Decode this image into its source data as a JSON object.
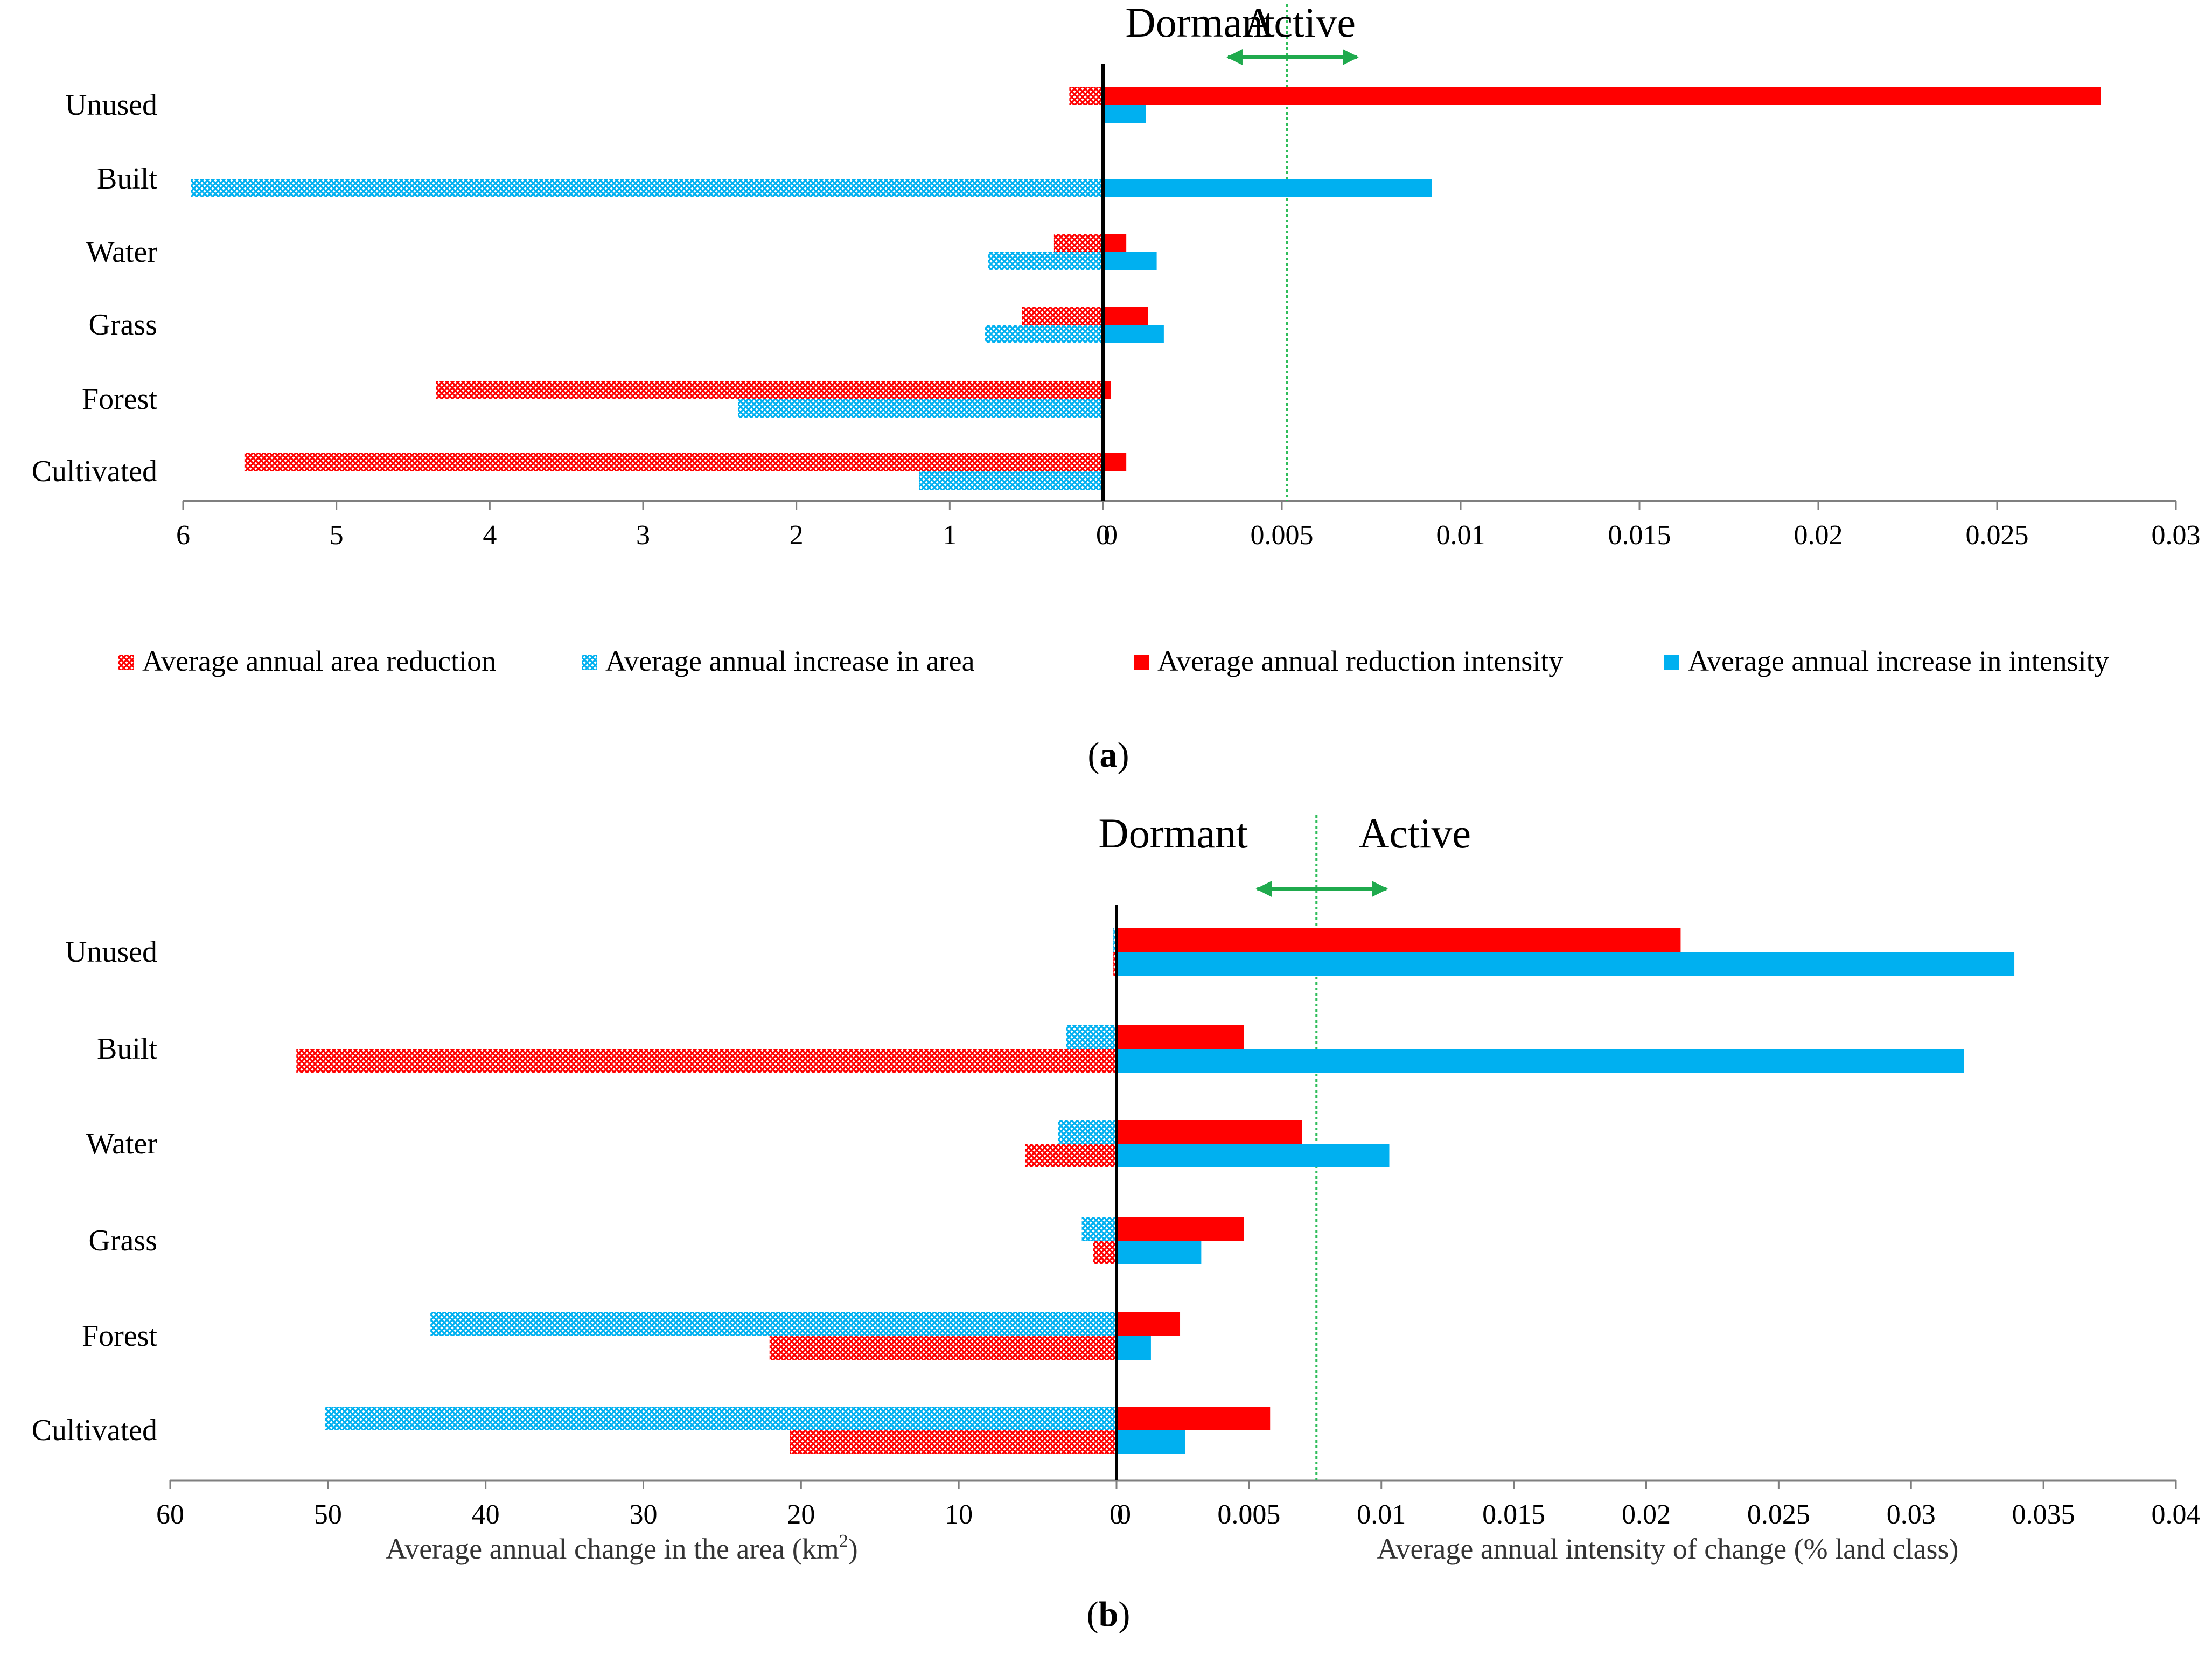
{
  "colors": {
    "reduction": "#ff0000",
    "increase": "#00b0f0",
    "threshold": "#2ebd59",
    "arrow": "#1faa4d",
    "axis": "#000000"
  },
  "icons": {
    "area_bar_fill": "crosshatch-pattern",
    "intensity_bar_fill": "solid",
    "zone_arrow": "double-headed-arrow"
  },
  "legend": [
    {
      "key": "area_reduction",
      "label": "Average annual area reduction",
      "fill": "hatched",
      "color": "#ff0000"
    },
    {
      "key": "area_increase",
      "label": "Average annual increase in area",
      "fill": "hatched",
      "color": "#00b0f0"
    },
    {
      "key": "intensity_reduction",
      "label": "Average annual reduction intensity",
      "fill": "solid",
      "color": "#ff0000"
    },
    {
      "key": "intensity_increase",
      "label": "Average annual increase in intensity",
      "fill": "solid",
      "color": "#00b0f0"
    }
  ],
  "chart_data": [
    {
      "panel": "(a)",
      "panel_letter": "a",
      "type": "bar",
      "orientation": "horizontal",
      "categories": [
        "Unused",
        "Built",
        "Water",
        "Grass",
        "Forest",
        "Cultivated"
      ],
      "zones": {
        "left": "Dormant",
        "right": "Active"
      },
      "threshold": 0.00515,
      "left_axis": {
        "label": "",
        "ticks": [
          6,
          5,
          4,
          3,
          2,
          1,
          0
        ],
        "tick_labels": [
          "6",
          "5",
          "4",
          "3",
          "2",
          "1",
          "0"
        ],
        "range": [
          0,
          6
        ],
        "series": [
          {
            "name": "Average annual area reduction",
            "key": "area_reduction",
            "position": "upper",
            "values": [
              0.22,
              0,
              0.32,
              0.53,
              4.35,
              5.6
            ]
          },
          {
            "name": "Average annual increase in area",
            "key": "area_increase",
            "position": "lower",
            "values": [
              0,
              5.95,
              0.75,
              0.77,
              2.38,
              1.2
            ]
          }
        ]
      },
      "right_axis": {
        "label": "",
        "ticks": [
          0,
          0.005,
          0.01,
          0.015,
          0.02,
          0.025,
          0.03
        ],
        "tick_labels": [
          "0",
          "0.005",
          "0.01",
          "0.015",
          "0.02",
          "0.025",
          "0.03"
        ],
        "range": [
          0,
          0.03
        ],
        "series": [
          {
            "name": "Average annual reduction intensity",
            "key": "intensity_reduction",
            "position": "upper",
            "values": [
              0.0279,
              0,
              0.00065,
              0.00125,
              0.00022,
              0.00065
            ]
          },
          {
            "name": "Average annual increase in intensity",
            "key": "intensity_increase",
            "position": "lower",
            "values": [
              0.0012,
              0.0092,
              0.0015,
              0.0017,
              0,
              0
            ]
          }
        ]
      }
    },
    {
      "panel": "(b)",
      "panel_letter": "b",
      "type": "bar",
      "orientation": "horizontal",
      "categories": [
        "Unused",
        "Built",
        "Water",
        "Grass",
        "Forest",
        "Cultivated"
      ],
      "zones": {
        "left": "Dormant",
        "right": "Active"
      },
      "threshold": 0.00755,
      "left_axis": {
        "label": "Average annual change in the area (km",
        "label_sup": "2",
        "label_end": ")",
        "ticks": [
          60,
          50,
          40,
          30,
          20,
          10,
          0
        ],
        "tick_labels": [
          "60",
          "50",
          "40",
          "30",
          "20",
          "10",
          "0"
        ],
        "range": [
          0,
          60
        ],
        "series": [
          {
            "name": "Average annual increase in area",
            "key": "area_increase",
            "position": "upper",
            "values": [
              0.2,
              3.2,
              3.7,
              2.2,
              43.5,
              50.2
            ]
          },
          {
            "name": "Average annual area reduction",
            "key": "area_reduction",
            "position": "lower",
            "values": [
              0.2,
              52,
              5.8,
              1.5,
              22,
              20.7
            ]
          }
        ]
      },
      "right_axis": {
        "label": "Average annual intensity of change (% land class)",
        "ticks": [
          0,
          0.005,
          0.01,
          0.015,
          0.02,
          0.025,
          0.03,
          0.035,
          0.04
        ],
        "tick_labels": [
          "0",
          "0.005",
          "0.01",
          "0.015",
          "0.02",
          "0.025",
          "0.03",
          "0.035",
          "0.04"
        ],
        "range": [
          0,
          0.04
        ],
        "series": [
          {
            "name": "Average annual reduction intensity",
            "key": "intensity_reduction",
            "position": "upper",
            "values": [
              0.0213,
              0.0048,
              0.007,
              0.0048,
              0.0024,
              0.0058
            ]
          },
          {
            "name": "Average annual increase in intensity",
            "key": "intensity_increase",
            "position": "lower",
            "values": [
              0.0339,
              0.032,
              0.0103,
              0.0032,
              0.0013,
              0.0026
            ]
          }
        ]
      }
    }
  ]
}
